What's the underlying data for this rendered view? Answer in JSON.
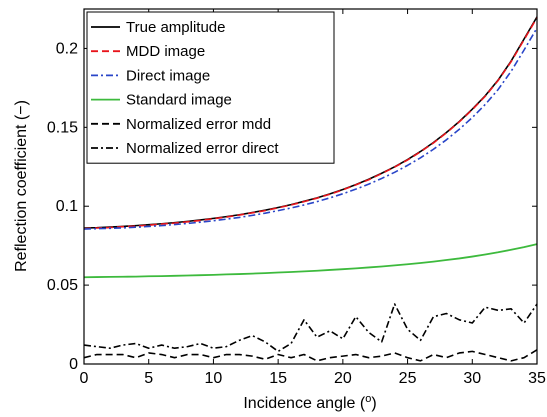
{
  "chart_data": {
    "type": "line",
    "xlabel": "Incidence angle (",
    "xlabel_sup": "o",
    "xlabel_end": ")",
    "ylabel": "Reflection coefficient (−)",
    "xlim": [
      0,
      35
    ],
    "ylim": [
      0,
      0.225
    ],
    "xticks": [
      0,
      5,
      10,
      15,
      20,
      25,
      30,
      35
    ],
    "xtick_labels": [
      "0",
      "5",
      "10",
      "15",
      "20",
      "25",
      "30",
      "35"
    ],
    "yticks": [
      0,
      0.05,
      0.1,
      0.15,
      0.2
    ],
    "ytick_labels": [
      "0",
      "0.05",
      "0.1",
      "0.15",
      "0.2"
    ],
    "grid": false,
    "legend_position": "top-left",
    "x": [
      0,
      1,
      2,
      3,
      4,
      5,
      6,
      7,
      8,
      9,
      10,
      11,
      12,
      13,
      14,
      15,
      16,
      17,
      18,
      19,
      20,
      21,
      22,
      23,
      24,
      25,
      26,
      27,
      28,
      29,
      30,
      31,
      32,
      33,
      34,
      35
    ],
    "series": [
      {
        "name": "True amplitude",
        "color": "#000000",
        "dash": "solid",
        "values": [
          0.0862,
          0.0864,
          0.0868,
          0.0872,
          0.0877,
          0.0883,
          0.0889,
          0.0896,
          0.0904,
          0.0913,
          0.0923,
          0.0934,
          0.0946,
          0.096,
          0.0975,
          0.0992,
          0.101,
          0.1031,
          0.1053,
          0.1078,
          0.1106,
          0.1137,
          0.1171,
          0.1209,
          0.125,
          0.1296,
          0.1347,
          0.1404,
          0.1467,
          0.1537,
          0.1615,
          0.17,
          0.18,
          0.192,
          0.206,
          0.22
        ]
      },
      {
        "name": "MDD image",
        "color": "#e8141b",
        "dash": "dashed",
        "values": [
          0.0858,
          0.0862,
          0.0865,
          0.087,
          0.0874,
          0.088,
          0.0887,
          0.0893,
          0.0901,
          0.091,
          0.0921,
          0.0931,
          0.0944,
          0.0958,
          0.0972,
          0.099,
          0.1008,
          0.1029,
          0.1051,
          0.1076,
          0.1104,
          0.1135,
          0.1168,
          0.1207,
          0.1248,
          0.1293,
          0.1345,
          0.1401,
          0.1465,
          0.1535,
          0.1612,
          0.1697,
          0.1797,
          0.1916,
          0.2055,
          0.2195
        ]
      },
      {
        "name": "Direct image",
        "color": "#2945c8",
        "dash": "dashdot",
        "values": [
          0.0855,
          0.0858,
          0.086,
          0.0863,
          0.0867,
          0.0872,
          0.0877,
          0.0884,
          0.0891,
          0.0899,
          0.0908,
          0.0918,
          0.0929,
          0.0942,
          0.0956,
          0.0972,
          0.0989,
          0.1008,
          0.1029,
          0.1053,
          0.1079,
          0.1108,
          0.114,
          0.1176,
          0.1215,
          0.1259,
          0.1307,
          0.1361,
          0.1421,
          0.1488,
          0.1562,
          0.1645,
          0.174,
          0.1855,
          0.199,
          0.213
        ]
      },
      {
        "name": "Standard image",
        "color": "#3dba3d",
        "dash": "solid",
        "values": [
          0.055,
          0.0551,
          0.0552,
          0.0553,
          0.0554,
          0.0556,
          0.0557,
          0.0559,
          0.0561,
          0.0563,
          0.0565,
          0.0568,
          0.057,
          0.0573,
          0.0576,
          0.058,
          0.0583,
          0.0587,
          0.0591,
          0.0596,
          0.0601,
          0.0606,
          0.0612,
          0.0618,
          0.0625,
          0.0632,
          0.064,
          0.0649,
          0.0659,
          0.0669,
          0.0681,
          0.0694,
          0.0708,
          0.0724,
          0.0741,
          0.076
        ]
      },
      {
        "name": "Normalized error mdd",
        "color": "#000000",
        "dash": "dashed",
        "values": [
          0.004,
          0.006,
          0.006,
          0.006,
          0.004,
          0.007,
          0.006,
          0.004,
          0.006,
          0.006,
          0.004,
          0.006,
          0.006,
          0.005,
          0.003,
          0.006,
          0.004,
          0.006,
          0.002,
          0.004,
          0.005,
          0.006,
          0.004,
          0.005,
          0.007,
          0.004,
          0.002,
          0.006,
          0.004,
          0.007,
          0.008,
          0.006,
          0.004,
          0.002,
          0.004,
          0.009
        ]
      },
      {
        "name": "Normalized error direct",
        "color": "#000000",
        "dash": "dashdot",
        "values": [
          0.012,
          0.011,
          0.01,
          0.012,
          0.013,
          0.01,
          0.012,
          0.01,
          0.011,
          0.013,
          0.01,
          0.011,
          0.015,
          0.018,
          0.014,
          0.008,
          0.013,
          0.028,
          0.017,
          0.021,
          0.016,
          0.03,
          0.02,
          0.014,
          0.038,
          0.022,
          0.015,
          0.03,
          0.032,
          0.028,
          0.026,
          0.036,
          0.034,
          0.035,
          0.026,
          0.038
        ]
      }
    ]
  }
}
